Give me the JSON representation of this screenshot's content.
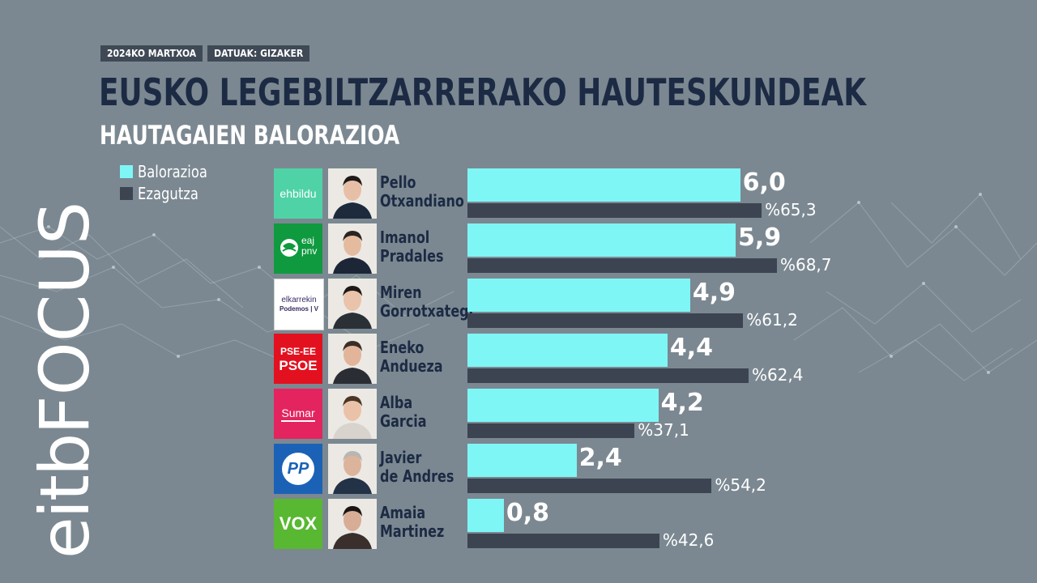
{
  "header": {
    "date_label": "2024KO MARTXOA",
    "source_label": "DATUAK: GIZAKER"
  },
  "brand": {
    "eitb": "eitb",
    "focus": "FOCUS"
  },
  "colors": {
    "background": "#7b8891",
    "valuation_bar": "#7ef6f6",
    "knowledge_bar": "#3c4452",
    "title": "#1c2a44"
  },
  "chart_data": {
    "type": "bar",
    "orientation": "horizontal",
    "title": "EUSKO LEGEBILTZARRERAKO HAUTESKUNDEAK",
    "subtitle": "HAUTAGAIEN BALORAZIOA",
    "legend_position": "top-left",
    "categories": [
      {
        "party": "ehbildu",
        "first_name": "Pello",
        "last_name": "Otxandiano",
        "logo_icon": "ehbildu-logo-icon",
        "logo_color": "#4fd3a6"
      },
      {
        "party": "eaj-pnv",
        "first_name": "Imanol",
        "last_name": "Pradales",
        "logo_icon": "pnv-logo-icon",
        "logo_color": "#0f9a3f",
        "logo_text": [
          "eaj",
          "pnv"
        ]
      },
      {
        "party": "elkarrekin-podemos",
        "first_name": "Miren",
        "last_name": "Gorrotxategi",
        "logo_icon": "elkarrekin-podemos-logo-icon",
        "logo_color": "#ffffff",
        "logo_text": [
          "elkarrekin",
          "Podemos | V"
        ]
      },
      {
        "party": "pse-ee-psoe",
        "first_name": "Eneko",
        "last_name": "Andueza",
        "logo_icon": "pse-psoe-logo-icon",
        "logo_color": "#e3111f",
        "logo_text": [
          "PSE-EE",
          "PSOE"
        ]
      },
      {
        "party": "sumar",
        "first_name": "Alba",
        "last_name": "Garcia",
        "logo_icon": "sumar-logo-icon",
        "logo_color": "#e3245f",
        "logo_text": [
          "Sumar"
        ]
      },
      {
        "party": "pp",
        "first_name": "Javier",
        "last_name": "de Andres",
        "logo_icon": "pp-logo-icon",
        "logo_color": "#1b62b7",
        "logo_text": [
          "PP"
        ]
      },
      {
        "party": "vox",
        "first_name": "Amaia",
        "last_name": "Martinez",
        "logo_icon": "vox-logo-icon",
        "logo_color": "#58b832",
        "logo_text": [
          "VOX"
        ]
      }
    ],
    "series": [
      {
        "name": "Balorazioa",
        "values": [
          6.0,
          5.9,
          4.9,
          4.4,
          4.2,
          2.4,
          0.8
        ],
        "labels": [
          "6,0",
          "5,9",
          "4,9",
          "4,4",
          "4,2",
          "2,4",
          "0,8"
        ],
        "scale_max": 10
      },
      {
        "name": "Ezagutza",
        "values": [
          65.3,
          68.7,
          61.2,
          62.4,
          37.1,
          54.2,
          42.6
        ],
        "labels": [
          "%65,3",
          "%68,7",
          "%61,2",
          "%62,4",
          "%37,1",
          "%54,2",
          "%42,6"
        ],
        "scale_max": 100
      }
    ],
    "grid": false
  }
}
